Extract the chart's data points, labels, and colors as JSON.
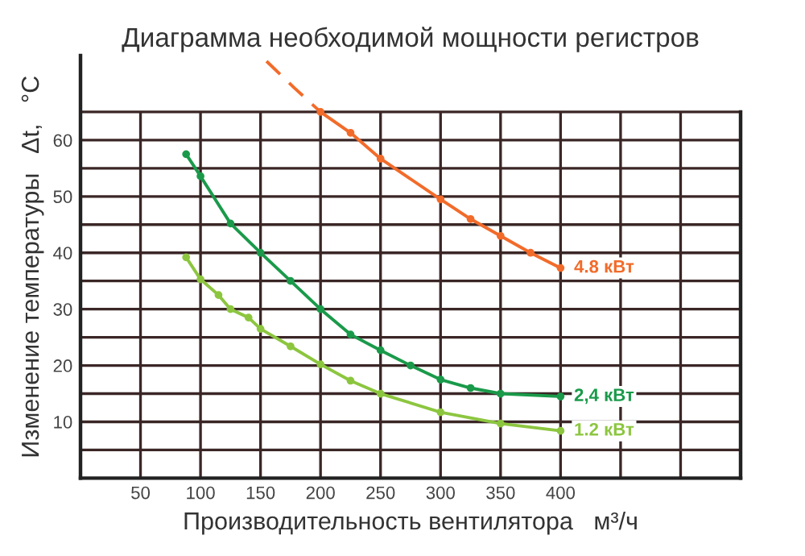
{
  "chart_data": {
    "type": "line",
    "title": "Диаграмма необходимой мощности регистров",
    "xlabel": "Производительность вентилятора   м³/ч",
    "ylabel": "Изменение температуры   Δt,   °C",
    "xlim": [
      0,
      550
    ],
    "xticks": [
      50,
      100,
      150,
      200,
      250,
      300,
      350,
      400,
      {
        "value": 450,
        "label": null
      },
      {
        "value": 500,
        "label": null
      }
    ],
    "ylim": [
      0,
      75
    ],
    "yticks": [
      {
        "value": 5,
        "label": null
      },
      10,
      {
        "value": 15,
        "label": null
      },
      20,
      {
        "value": 25,
        "label": null
      },
      30,
      {
        "value": 35,
        "label": null
      },
      40,
      {
        "value": 45,
        "label": null
      },
      50,
      {
        "value": 55,
        "label": null
      },
      60,
      {
        "value": 65,
        "label": null
      }
    ],
    "grid": true,
    "marker": "circle",
    "series": [
      {
        "color": "#f26b2a",
        "line_style": "dashed",
        "marker": "none",
        "x": [
          155,
          178,
          200
        ],
        "values": [
          74,
          69.3,
          65
        ]
      },
      {
        "name": "4.8 кВт",
        "color": "#f26b2a",
        "x": [
          200,
          225,
          250,
          300,
          325,
          350,
          375,
          400
        ],
        "values": [
          65,
          61.3,
          56.7,
          49.5,
          46,
          43,
          40,
          37.3
        ]
      },
      {
        "name": "2,4 кВт",
        "color": "#1a9a4a",
        "x": [
          88,
          100,
          125,
          150,
          175,
          200,
          225,
          250,
          275,
          300,
          325,
          350,
          400
        ],
        "values": [
          57.5,
          53.6,
          45.2,
          40,
          35,
          30,
          25.5,
          22.7,
          20,
          17.5,
          16,
          15,
          14.5
        ]
      },
      {
        "name": "1.2 кВт",
        "color": "#8cc63f",
        "x": [
          88,
          100,
          115,
          125,
          140,
          150,
          175,
          200,
          225,
          250,
          300,
          350,
          400
        ],
        "values": [
          39.2,
          35.3,
          32.5,
          30,
          28.5,
          26.5,
          23.4,
          20.2,
          17.3,
          15,
          11.7,
          9.7,
          8.4
        ]
      }
    ]
  }
}
